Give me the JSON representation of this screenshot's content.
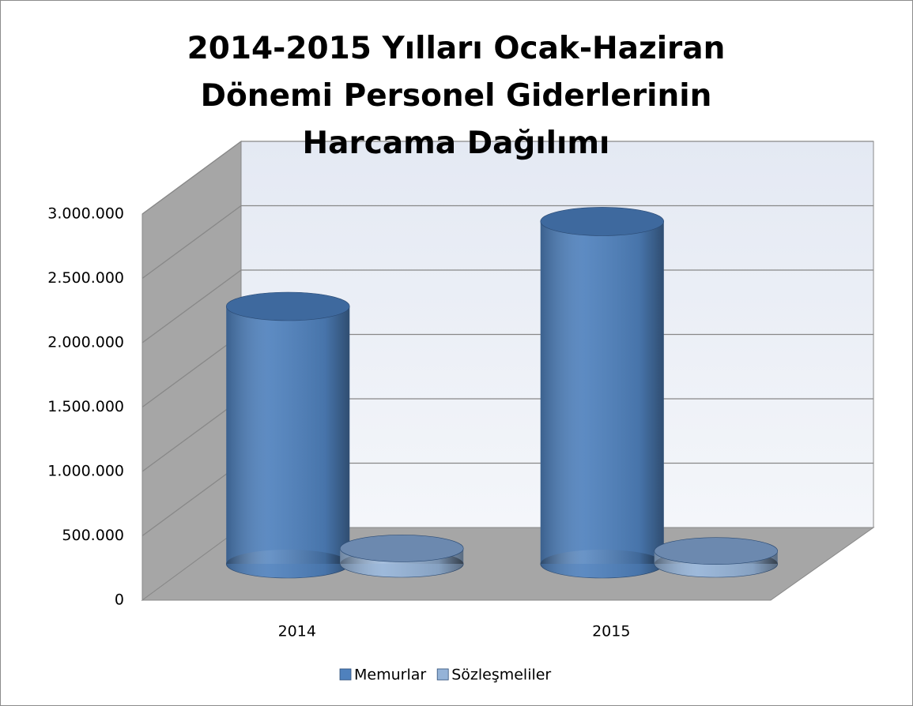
{
  "chart_data": {
    "type": "bar3d",
    "title": "2014-2015 Yılları Ocak-Haziran Dönemi Personel Giderlerinin Harcama Dağılımı",
    "categories": [
      "2014",
      "2015"
    ],
    "series": [
      {
        "name": "Memurlar",
        "color": "#4f81bd",
        "values": [
          2000000,
          2660000
        ]
      },
      {
        "name": "Sözleşmeliler",
        "color": "#95b3d7",
        "values": [
          120000,
          100000
        ]
      }
    ],
    "ylim": [
      0,
      3000000
    ],
    "yticks": [
      0,
      {
        "value": 500000,
        "label": "500.000"
      },
      {
        "value": 1000000,
        "label": "1.000.000"
      },
      {
        "value": 1500000,
        "label": "1.500.000"
      },
      {
        "value": 2000000,
        "label": "2.000.000"
      },
      {
        "value": 2500000,
        "label": "2.500.000"
      },
      {
        "value": 3000000,
        "label": "3.000.000"
      }
    ],
    "grid": true,
    "legend": "bottom"
  }
}
